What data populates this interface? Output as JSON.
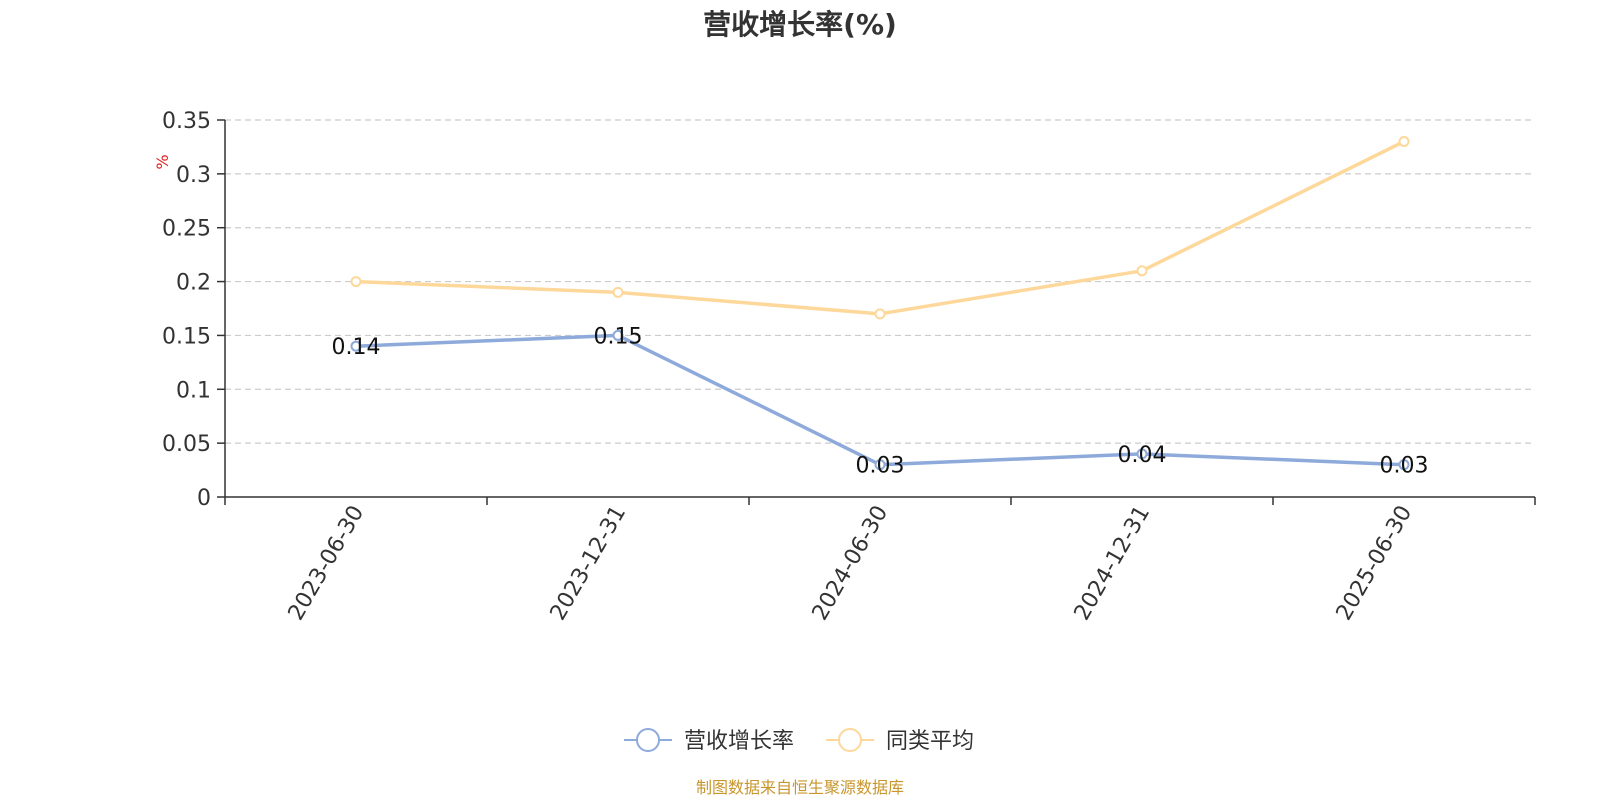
{
  "chart_data": {
    "type": "line",
    "title": "营收增长率(%)",
    "ylabel": "%",
    "xlabel": "",
    "categories": [
      "2023-06-30",
      "2023-12-31",
      "2024-06-30",
      "2024-12-31",
      "2025-06-30"
    ],
    "ylim": [
      0,
      0.35
    ],
    "yticks": [
      0,
      0.05,
      0.1,
      0.15,
      0.2,
      0.25,
      0.3,
      0.35
    ],
    "ytick_labels": [
      "0",
      "0.05",
      "0.1",
      "0.15",
      "0.2",
      "0.25",
      "0.3",
      "0.35"
    ],
    "grid": true,
    "legend_position": "bottom-center",
    "series": [
      {
        "name": "营收增长率",
        "color": "#8eaadb",
        "values": [
          0.14,
          0.15,
          0.03,
          0.04,
          0.03
        ],
        "data_labels": [
          "0.14",
          "0.15",
          "0.03",
          "0.04",
          "0.03"
        ]
      },
      {
        "name": "同类平均",
        "color": "#fdd89a",
        "values": [
          0.2,
          0.19,
          0.17,
          0.21,
          0.33
        ]
      }
    ]
  },
  "footer": {
    "source_text": "制图数据来自恒生聚源数据库",
    "source_color": "#c8962c"
  },
  "colors": {
    "axis": "#333333",
    "grid": "#cccccc",
    "ylabel": "#e02020",
    "text": "#333333"
  }
}
